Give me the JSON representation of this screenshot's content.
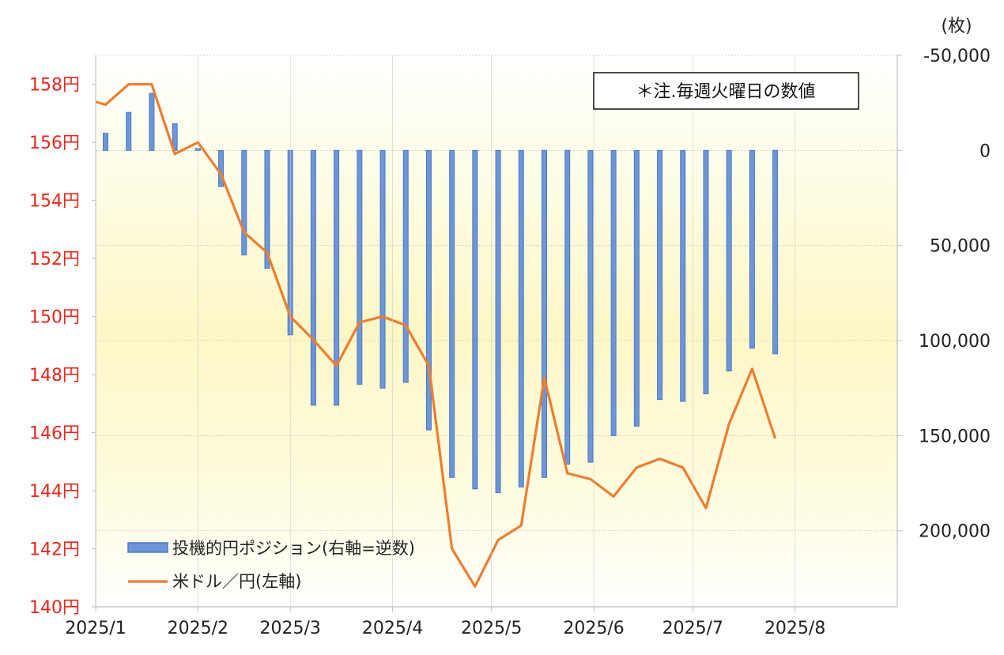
{
  "chart_data": {
    "type": "bar+line",
    "note": "＊注.毎週火曜日の数値",
    "right_unit": "(枚)",
    "left_axis": {
      "ylim": [
        140,
        159
      ],
      "ticks": [
        140,
        142,
        144,
        146,
        148,
        150,
        152,
        154,
        156,
        158
      ],
      "tick_labels": [
        "140円",
        "142円",
        "144円",
        "146円",
        "148円",
        "150円",
        "152円",
        "154円",
        "156円",
        "158円"
      ]
    },
    "right_axis": {
      "inverted": true,
      "ylim": [
        -50000,
        240000
      ],
      "ticks": [
        -50000,
        0,
        50000,
        100000,
        150000,
        200000
      ],
      "tick_labels": [
        "-50,000",
        "0",
        "50,000",
        "100,000",
        "150,000",
        "200,000"
      ]
    },
    "x_axis": {
      "ticks": [
        "2025-01-01",
        "2025-02-01",
        "2025-03-01",
        "2025-04-01",
        "2025-05-01",
        "2025-06-01",
        "2025-07-01",
        "2025-08-01"
      ],
      "tick_labels": [
        "2025/1",
        "2025/2",
        "2025/3",
        "2025/4",
        "2025/5",
        "2025/6",
        "2025/7",
        "2025/8"
      ],
      "range": [
        "2025-01-01",
        "2025-09-01"
      ]
    },
    "series": [
      {
        "name": "投機的円ポジション(右軸=逆数)",
        "type": "bar",
        "axis": "right",
        "color": "#4472c4",
        "x": [
          "2025-01-04",
          "2025-01-11",
          "2025-01-18",
          "2025-01-25",
          "2025-02-01",
          "2025-02-08",
          "2025-02-15",
          "2025-02-22",
          "2025-03-01",
          "2025-03-08",
          "2025-03-15",
          "2025-03-22",
          "2025-03-29",
          "2025-04-05",
          "2025-04-12",
          "2025-04-19",
          "2025-04-26",
          "2025-05-03",
          "2025-05-10",
          "2025-05-17",
          "2025-05-24",
          "2025-05-31",
          "2025-06-07",
          "2025-06-14",
          "2025-06-21",
          "2025-06-28",
          "2025-07-05",
          "2025-07-12",
          "2025-07-19",
          "2025-07-26"
        ],
        "values": [
          -9000,
          -20000,
          -30000,
          -14000,
          -1000,
          19000,
          55000,
          62000,
          97000,
          134000,
          134000,
          123000,
          125000,
          122000,
          147000,
          172000,
          178000,
          180000,
          177000,
          172000,
          165000,
          164000,
          150000,
          145000,
          131000,
          132000,
          128000,
          116000,
          104000,
          107000
        ]
      },
      {
        "name": "米ドル／円(左軸)",
        "type": "line",
        "axis": "left",
        "color": "#ed7d31",
        "x": [
          "2025-01-01",
          "2025-01-04",
          "2025-01-11",
          "2025-01-18",
          "2025-01-25",
          "2025-02-01",
          "2025-02-08",
          "2025-02-15",
          "2025-02-22",
          "2025-03-01",
          "2025-03-08",
          "2025-03-15",
          "2025-03-22",
          "2025-03-29",
          "2025-04-05",
          "2025-04-12",
          "2025-04-19",
          "2025-04-26",
          "2025-05-03",
          "2025-05-10",
          "2025-05-17",
          "2025-05-24",
          "2025-05-31",
          "2025-06-07",
          "2025-06-14",
          "2025-06-21",
          "2025-06-28",
          "2025-07-05",
          "2025-07-12",
          "2025-07-19",
          "2025-07-26"
        ],
        "values": [
          157.4,
          157.3,
          158.0,
          158.0,
          155.6,
          156.0,
          154.9,
          152.9,
          152.2,
          150.0,
          149.2,
          148.3,
          149.8,
          150.0,
          149.7,
          148.3,
          142.0,
          140.7,
          142.3,
          142.8,
          147.9,
          144.6,
          144.4,
          143.8,
          144.8,
          145.1,
          144.8,
          143.4,
          146.3,
          148.2,
          145.8
        ]
      }
    ]
  }
}
